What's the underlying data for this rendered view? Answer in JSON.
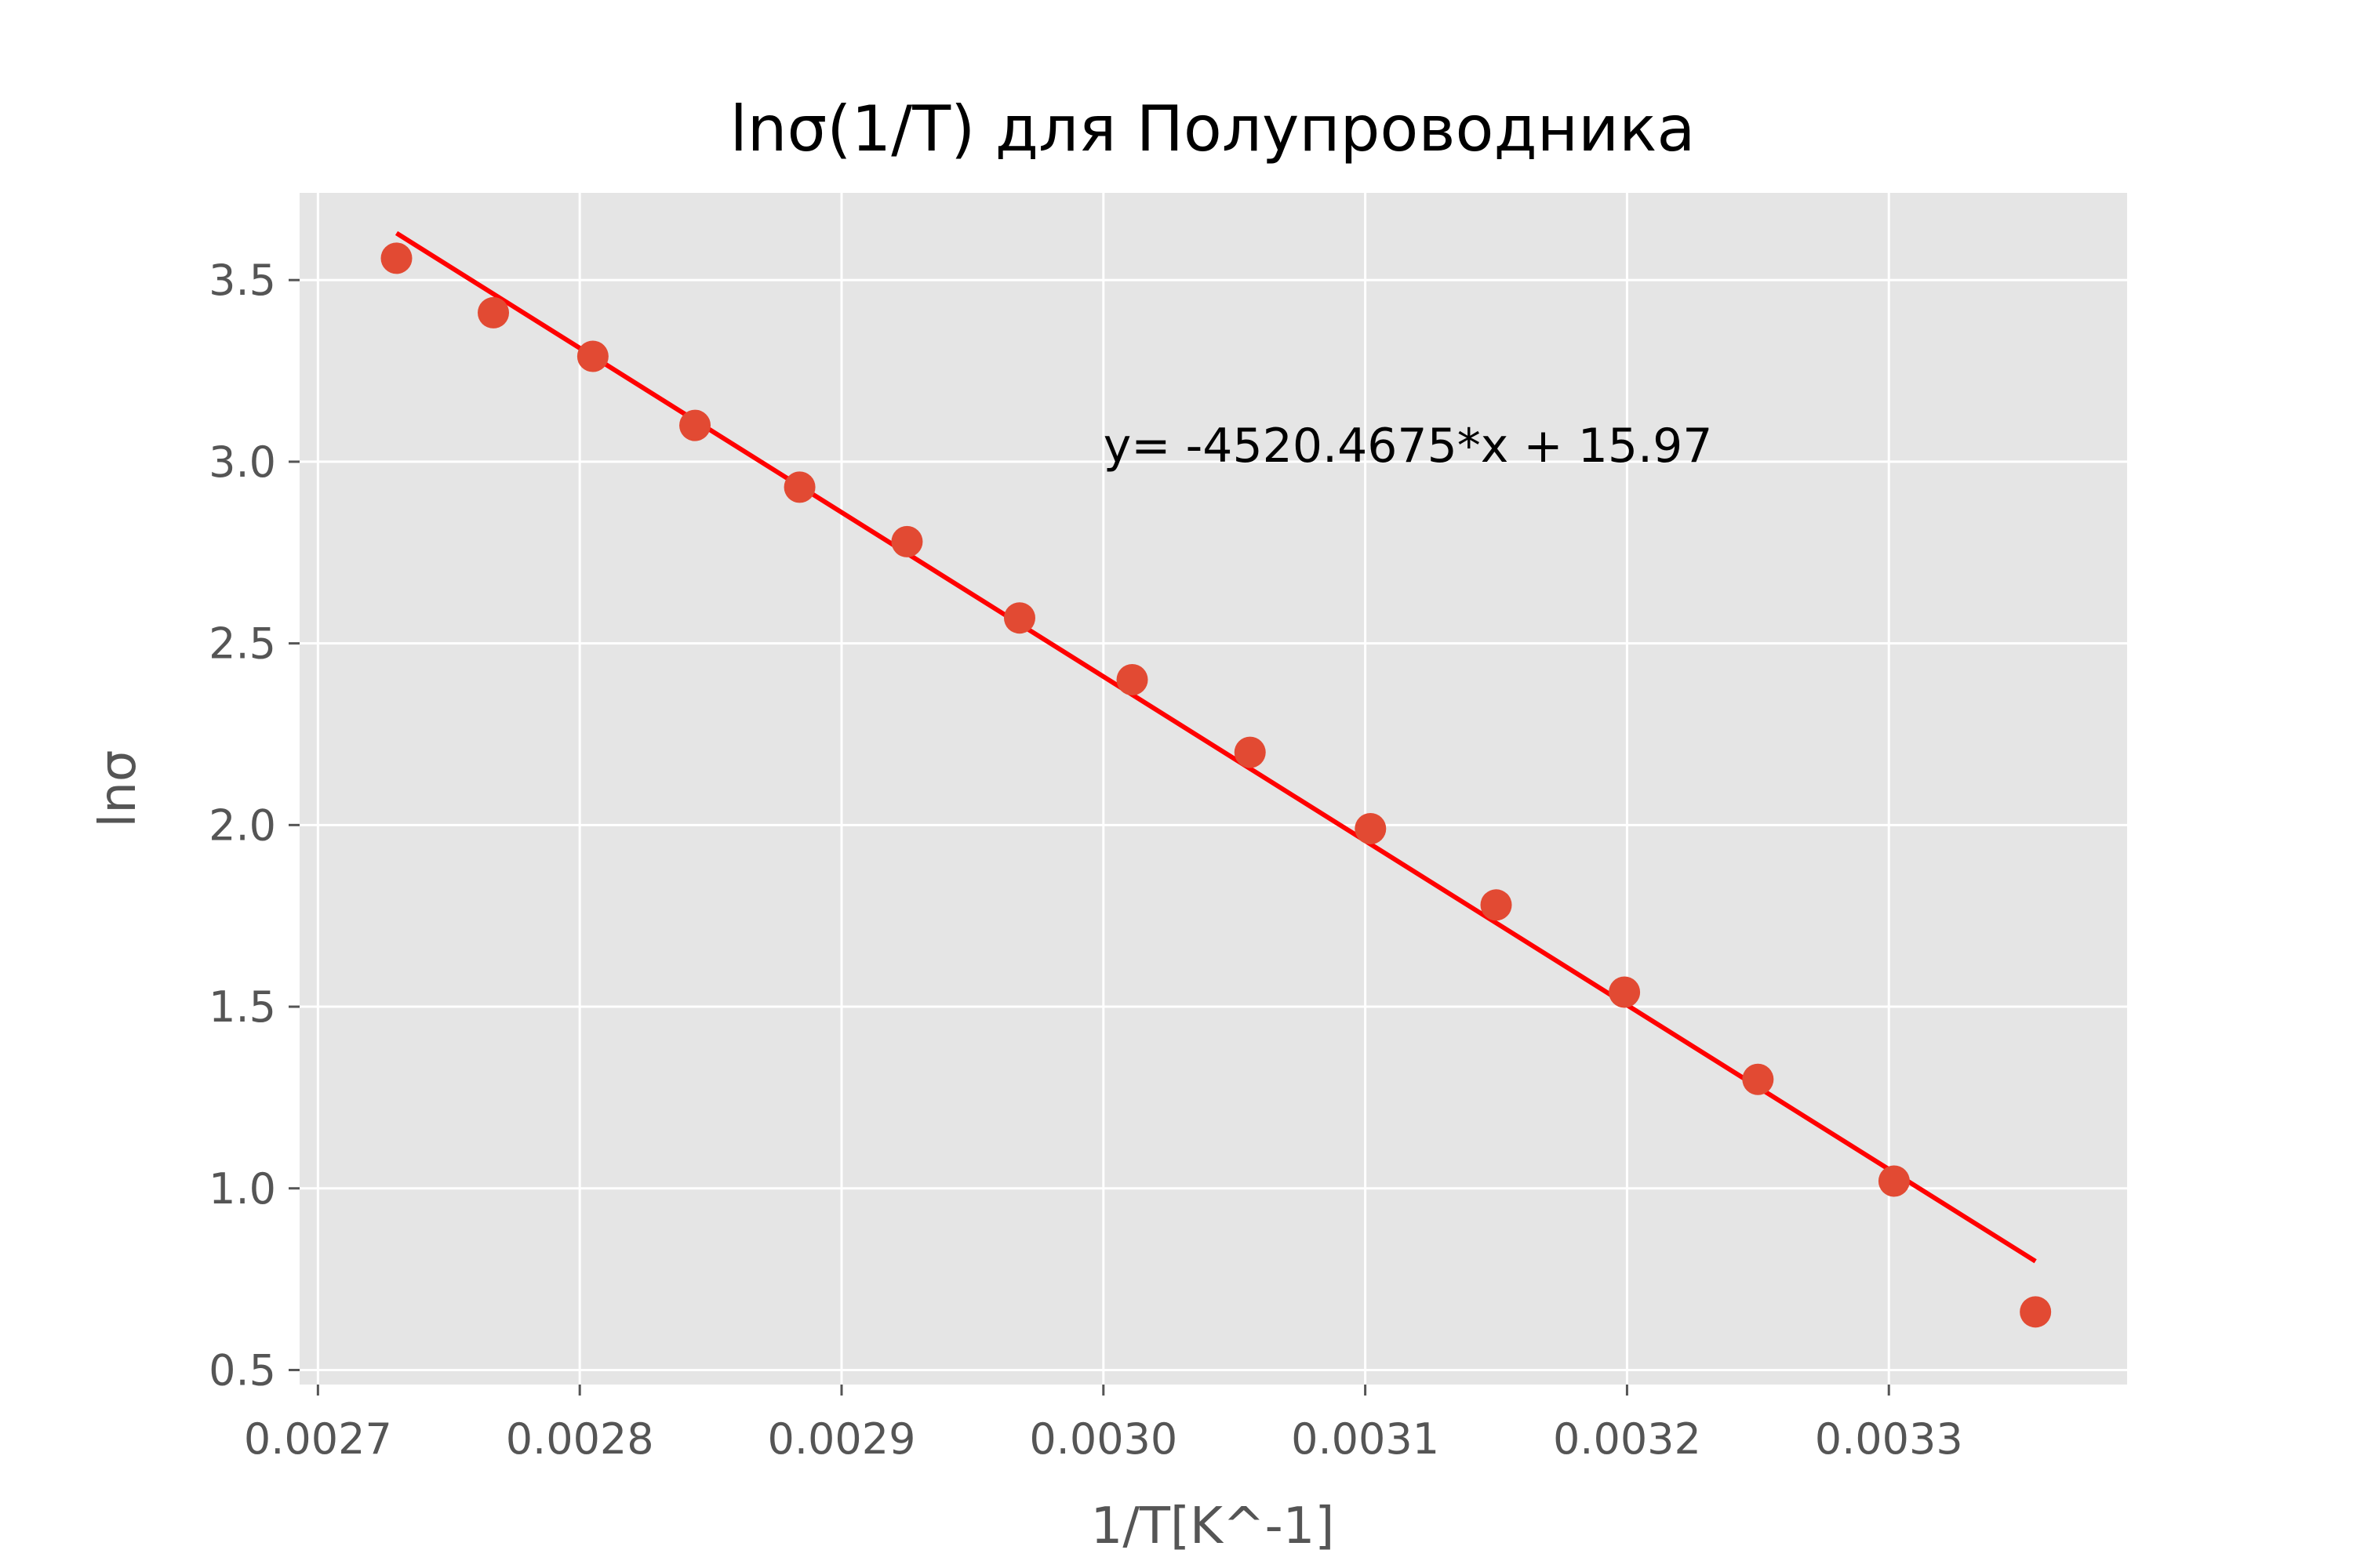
{
  "chart_data": {
    "type": "scatter",
    "title": "lnσ(1/T) для Полупроводника",
    "xlabel": "1/T[K^-1]",
    "ylabel": "lnσ",
    "xlim": [
      0.002693,
      0.003391
    ],
    "ylim": [
      0.46,
      3.74
    ],
    "x_ticks": [
      0.0027,
      0.0028,
      0.0029,
      0.003,
      0.0031,
      0.0032,
      0.0033
    ],
    "x_tick_labels": [
      "0.0027",
      "0.0028",
      "0.0029",
      "0.0030",
      "0.0031",
      "0.0032",
      "0.0033"
    ],
    "y_ticks": [
      0.5,
      1.0,
      1.5,
      2.0,
      2.5,
      3.0,
      3.5
    ],
    "y_tick_labels": [
      "0.5",
      "1.0",
      "1.5",
      "2.0",
      "2.5",
      "3.0",
      "3.5"
    ],
    "grid": true,
    "colors": {
      "background": "#e5e5e5",
      "grid": "#ffffff",
      "points": "#e24a33",
      "fit_line": "#ff0000"
    },
    "points": {
      "x": [
        0.00273,
        0.002767,
        0.002805,
        0.002844,
        0.002884,
        0.002925,
        0.002968,
        0.003011,
        0.003056,
        0.003102,
        0.00315,
        0.003199,
        0.00325,
        0.003302,
        0.003356
      ],
      "y": [
        3.56,
        3.41,
        3.29,
        3.1,
        2.93,
        2.78,
        2.57,
        2.4,
        2.2,
        1.99,
        1.78,
        1.54,
        1.3,
        1.02,
        0.66
      ]
    },
    "fit": {
      "slope": -4520.4675,
      "intercept": 15.97,
      "x_range": [
        0.00273,
        0.003356
      ]
    },
    "annotation": {
      "text": "y= -4520.4675*x + 15.97",
      "x": 0.003,
      "y": 3.0
    }
  }
}
